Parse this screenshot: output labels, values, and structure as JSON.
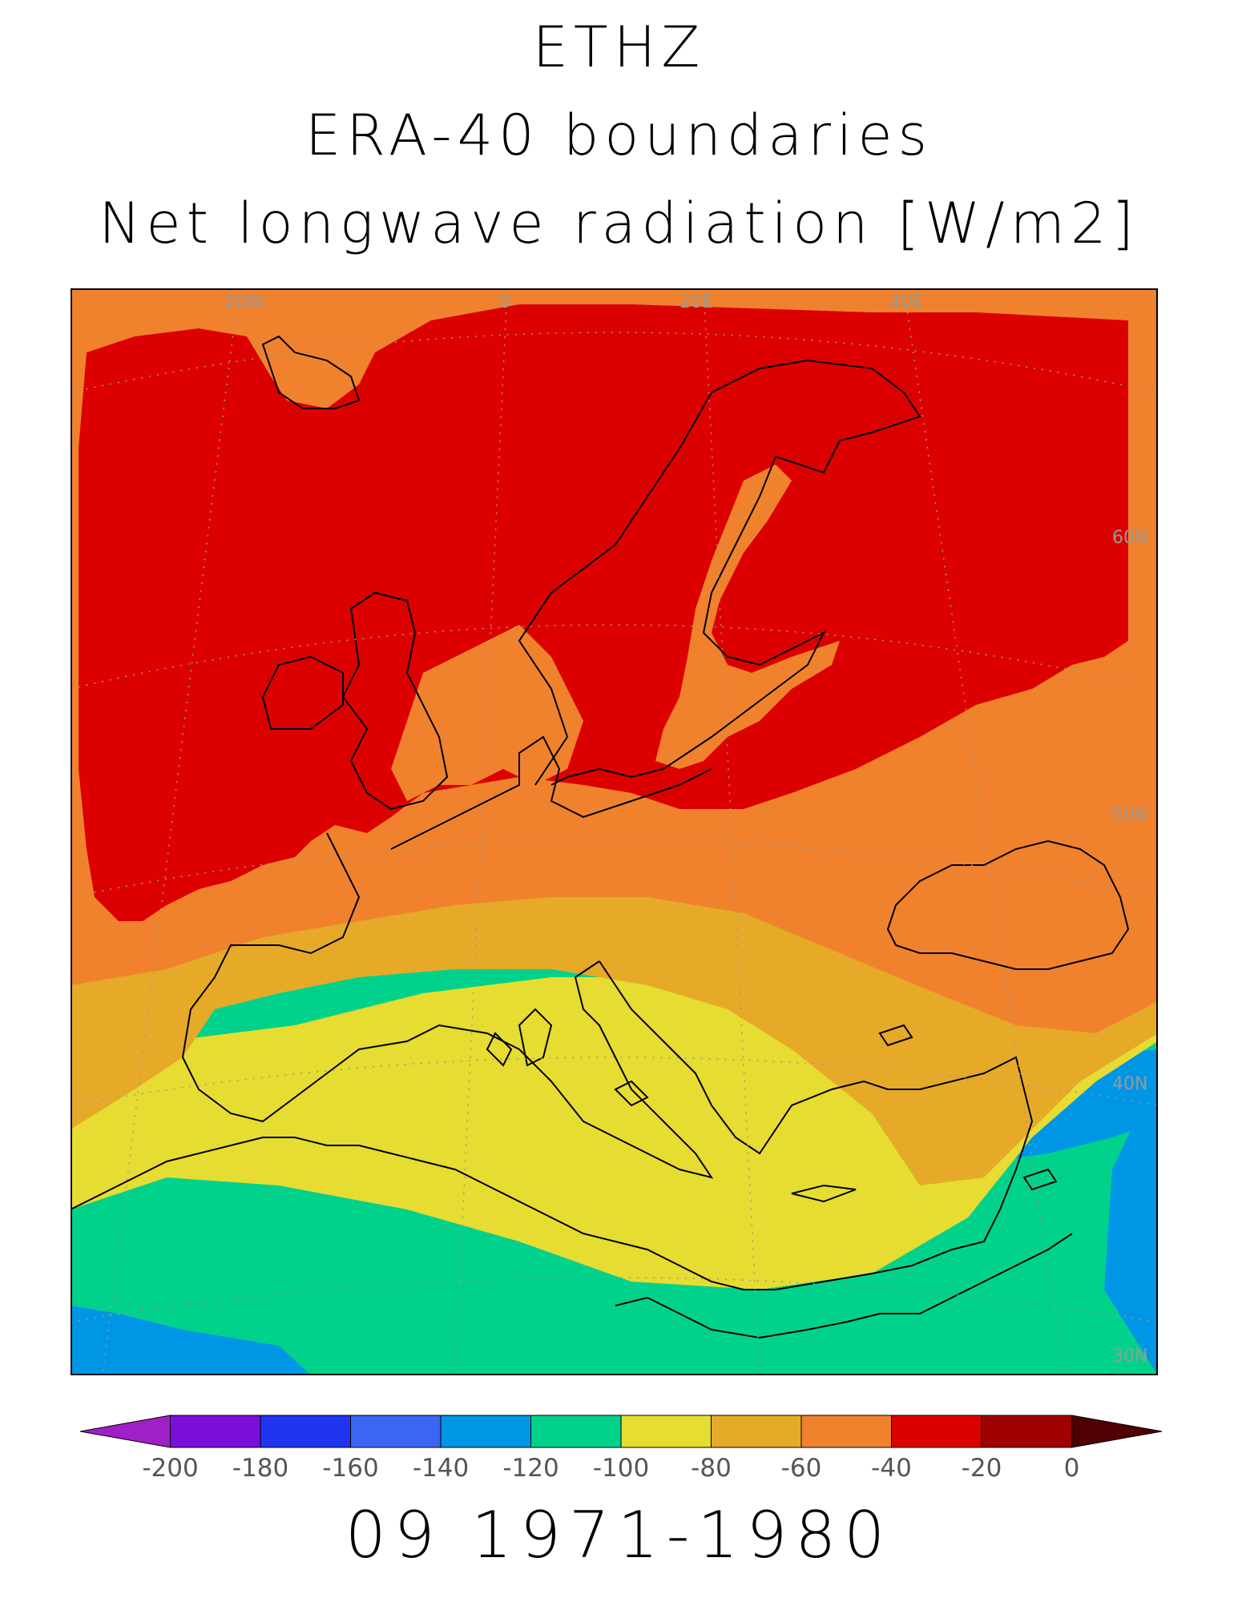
{
  "title": {
    "line1": "ETHZ",
    "line2": "ERA-40 boundaries",
    "line3": "Net longwave radiation [W/m2]"
  },
  "map": {
    "lon_labels": [
      "20W",
      "0",
      "20E",
      "40E"
    ],
    "lat_labels": [
      "60N",
      "50N",
      "40N",
      "30N"
    ]
  },
  "colorbar": {
    "ticks": [
      "-200",
      "-180",
      "-160",
      "-140",
      "-120",
      "-100",
      "-80",
      "-60",
      "-40",
      "-20",
      "0"
    ],
    "colors": [
      "#a020c8",
      "#7a10d8",
      "#2035f0",
      "#3c64f5",
      "#0096e6",
      "#00d28c",
      "#e6dc32",
      "#e6aa28",
      "#f0822d",
      "#dc0000",
      "#a00000",
      "#500000"
    ]
  },
  "footer": "09 1971-1980"
}
